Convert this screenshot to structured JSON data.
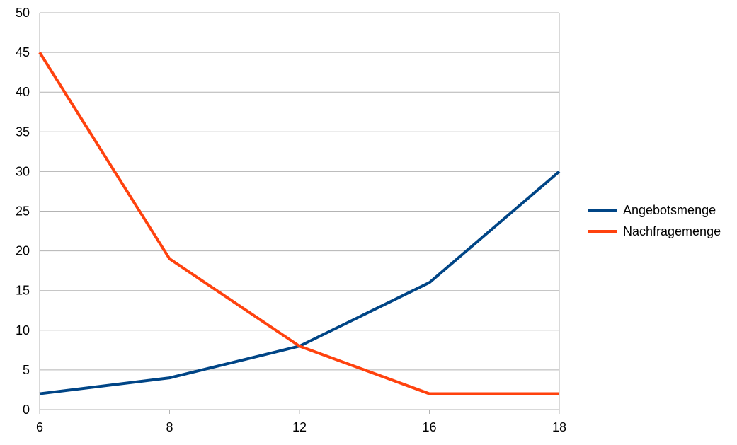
{
  "chart_data": {
    "type": "line",
    "title": "",
    "xlabel": "",
    "ylabel": "",
    "categories": [
      "6",
      "8",
      "12",
      "16",
      "18"
    ],
    "series": [
      {
        "name": "Angebotsmenge",
        "color": "#004586",
        "values": [
          2,
          4,
          8,
          16,
          30
        ]
      },
      {
        "name": "Nachfragemenge",
        "color": "#ff420e",
        "values": [
          45,
          19,
          8,
          2,
          2
        ]
      }
    ],
    "ylim": [
      0,
      50
    ],
    "yticks": [
      "0",
      "5",
      "10",
      "15",
      "20",
      "25",
      "30",
      "35",
      "40",
      "45",
      "50"
    ],
    "grid": true,
    "legend_position": "right"
  }
}
